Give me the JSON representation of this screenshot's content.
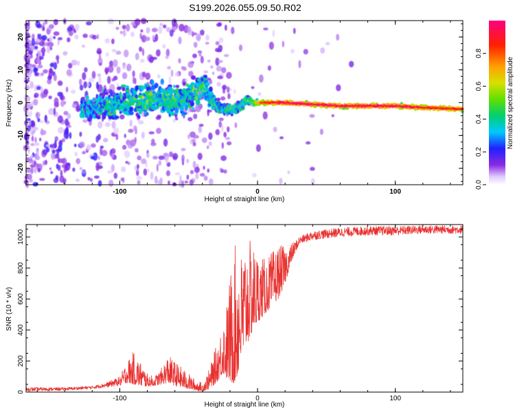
{
  "title": "S199.2026.055.09.50.R02",
  "colors": {
    "line": "#e8312f",
    "axis": "#000000",
    "background": "#ffffff"
  },
  "chart_data": [
    {
      "type": "heatmap",
      "title": "",
      "xlabel": "Height of straight line (km)",
      "ylabel": "Frequency (Hz)",
      "xlim": [
        -168,
        149
      ],
      "ylim": [
        -25,
        25
      ],
      "x_ticks": [
        -100,
        0,
        100
      ],
      "y_ticks": [
        -20,
        -10,
        0,
        10,
        20
      ],
      "grid": false,
      "ridge": {
        "x": [
          -125,
          -100,
          -80,
          -60,
          -45,
          -38,
          -32,
          -25,
          -18,
          -12,
          -8,
          -3,
          0,
          10,
          20,
          40,
          60,
          80,
          100,
          120,
          149
        ],
        "freq": [
          -2,
          0,
          1.5,
          0,
          3,
          5,
          0,
          -2,
          -2,
          -1,
          1,
          0,
          0,
          0,
          0,
          -0.5,
          -1,
          -1,
          -1,
          -1.5,
          -2
        ],
        "width": [
          5,
          6,
          7,
          6,
          6,
          6,
          3,
          2,
          2,
          1.5,
          1.5,
          1.5,
          1,
          1,
          1,
          1,
          1,
          1,
          1,
          1,
          1
        ],
        "amplitude": [
          0.3,
          0.35,
          0.4,
          0.38,
          0.4,
          0.42,
          0.35,
          0.38,
          0.4,
          0.42,
          0.45,
          0.55,
          0.8,
          0.9,
          0.95,
          0.95,
          0.95,
          0.95,
          0.95,
          0.9,
          0.85
        ]
      },
      "noise_region_x": [
        -168,
        -110
      ],
      "colorbar": {
        "label": "Normalized spectral amplitude",
        "range": [
          0,
          1
        ],
        "ticks": [
          0.0,
          0.2,
          0.4,
          0.6,
          0.8
        ],
        "tick_labels": [
          "0.0",
          "0.2",
          "0.4",
          "0.6",
          "0.8"
        ]
      }
    },
    {
      "type": "line",
      "title": "",
      "xlabel": "Height of straight line (km)",
      "ylabel": "SNR (10 * v/v)",
      "xlim": [
        -168,
        149
      ],
      "ylim": [
        0,
        1080
      ],
      "x_ticks": [
        -100,
        0,
        100
      ],
      "y_ticks": [
        0,
        200,
        400,
        600,
        800,
        1000
      ],
      "grid": false,
      "series": [
        {
          "name": "SNR",
          "envelope_x": [
            -168,
            -140,
            -120,
            -110,
            -100,
            -95,
            -90,
            -85,
            -80,
            -75,
            -70,
            -65,
            -60,
            -55,
            -50,
            -45,
            -40,
            -35,
            -30,
            -25,
            -22,
            -18,
            -15,
            -12,
            -8,
            -3,
            0,
            5,
            10,
            15,
            20,
            25,
            30,
            40,
            60,
            80,
            100,
            120,
            149
          ],
          "envelope_low": [
            5,
            10,
            20,
            30,
            40,
            60,
            50,
            40,
            35,
            40,
            50,
            60,
            40,
            30,
            20,
            10,
            5,
            20,
            60,
            120,
            80,
            50,
            80,
            200,
            300,
            400,
            450,
            500,
            550,
            600,
            700,
            850,
            950,
            980,
            1000,
            1010,
            1010,
            1020,
            1020
          ],
          "envelope_high": [
            30,
            30,
            40,
            60,
            100,
            200,
            260,
            200,
            120,
            100,
            150,
            240,
            200,
            160,
            120,
            80,
            60,
            150,
            300,
            460,
            600,
            900,
            980,
            900,
            1000,
            950,
            900,
            860,
            900,
            950,
            940,
            960,
            1000,
            1040,
            1060,
            1070,
            1070,
            1075,
            1075
          ]
        }
      ]
    }
  ]
}
